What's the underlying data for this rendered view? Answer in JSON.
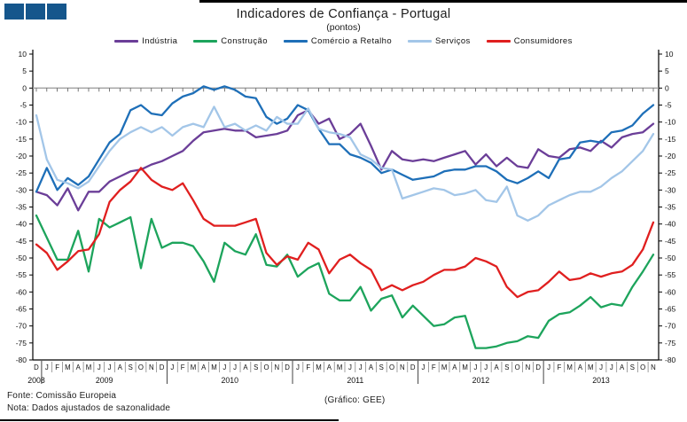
{
  "header": {
    "title": "Indicadores de Confiança - Portugal",
    "subtitle": "(pontos)"
  },
  "footer": {
    "fonte": "Fonte: Comissão Europeia",
    "nota": "Nota: Dados ajustados de sazonalidade",
    "grafico": "(Gráfico: GEE)"
  },
  "colors": {
    "logo_square": "#15568C",
    "axis": "#000000",
    "zero_line": "#a0a0a0",
    "month_tick": "#555555",
    "separator": "#777777"
  },
  "chart_data": {
    "type": "line",
    "title": "Indicadores de Confiança - Portugal",
    "subtitle": "(pontos)",
    "xlabel": "",
    "ylabel": "",
    "ylim": [
      -80,
      10
    ],
    "ytick_step": 5,
    "grid": "zero-line-only",
    "legend_position": "top",
    "x_month_labels": [
      "D",
      "J",
      "F",
      "M",
      "A",
      "M",
      "J",
      "J",
      "A",
      "S",
      "O",
      "N",
      "D",
      "J",
      "F",
      "M",
      "A",
      "M",
      "J",
      "J",
      "A",
      "S",
      "O",
      "N",
      "D",
      "J",
      "F",
      "M",
      "A",
      "M",
      "J",
      "J",
      "A",
      "S",
      "O",
      "N",
      "D",
      "J",
      "F",
      "M",
      "A",
      "M",
      "J",
      "J",
      "A",
      "S",
      "O",
      "N",
      "D",
      "J",
      "F",
      "M",
      "A",
      "M",
      "J",
      "J",
      "A",
      "S",
      "O",
      "N"
    ],
    "years": [
      {
        "label": "2008",
        "start": 0,
        "end": 0
      },
      {
        "label": "2009",
        "start": 1,
        "end": 12
      },
      {
        "label": "2010",
        "start": 13,
        "end": 24
      },
      {
        "label": "2011",
        "start": 25,
        "end": 36
      },
      {
        "label": "2012",
        "start": 37,
        "end": 48
      },
      {
        "label": "2013",
        "start": 49,
        "end": 59
      }
    ],
    "series": [
      {
        "name": "Indústria",
        "color": "#6B3E98",
        "values": [
          -30.5,
          -31.5,
          -34.5,
          -29.5,
          -36,
          -30.5,
          -30.5,
          -27.5,
          -26,
          -24.5,
          -24,
          -22.5,
          -21.5,
          -20,
          -18.5,
          -15.5,
          -13,
          -12.5,
          -12,
          -12.5,
          -12.5,
          -14.5,
          -14,
          -13.5,
          -12.5,
          -8,
          -6.5,
          -10.5,
          -9,
          -15,
          -13.5,
          -10.5,
          -17,
          -24,
          -18.5,
          -21,
          -21.5,
          -21,
          -21.5,
          -20.5,
          -19.5,
          -18.5,
          -22.5,
          -19.5,
          -23,
          -20.5,
          -23,
          -23.5,
          -18,
          -20,
          -20.5,
          -18,
          -17.5,
          -18.5,
          -15.5,
          -17.5,
          -14.5,
          -13.5,
          -13,
          -10.5
        ]
      },
      {
        "name": "Construção",
        "color": "#1DA45C",
        "values": [
          -37.5,
          -44,
          -50.5,
          -50.5,
          -42,
          -54,
          -38.5,
          -41,
          -39.5,
          -38,
          -53,
          -38.5,
          -47,
          -45.5,
          -45.5,
          -46.5,
          -51,
          -57,
          -45.5,
          -48,
          -49,
          -43,
          -52,
          -52.5,
          -49,
          -55.5,
          -53,
          -51.5,
          -60.5,
          -62.5,
          -62.5,
          -58.5,
          -65.5,
          -62,
          -61,
          -67.5,
          -64,
          -67,
          -70,
          -69.5,
          -67.5,
          -67,
          -76.5,
          -76.5,
          -76,
          -75,
          -74.5,
          -73,
          -73.5,
          -68.5,
          -66.5,
          -66,
          -64,
          -61.5,
          -64.5,
          -63.5,
          -64,
          -58.5,
          -54,
          -49
        ]
      },
      {
        "name": "Comércio a Retalho",
        "color": "#1E6FB8",
        "values": [
          -30.5,
          -23.5,
          -30,
          -26.5,
          -28.5,
          -26,
          -21,
          -16,
          -13.5,
          -6.5,
          -5,
          -7.5,
          -8,
          -4.5,
          -2.5,
          -1.5,
          0.5,
          -0.5,
          0.5,
          -0.5,
          -2.5,
          -3,
          -8.5,
          -10.5,
          -9,
          -5,
          -6.5,
          -12,
          -16.5,
          -16.5,
          -19.5,
          -20.5,
          -22,
          -25,
          -24,
          -25.5,
          -27,
          -26.5,
          -26,
          -24.5,
          -24,
          -24,
          -23,
          -23,
          -24.5,
          -27,
          -28,
          -26.5,
          -24.5,
          -26.5,
          -21,
          -20.5,
          -16,
          -15.5,
          -16,
          -13,
          -12.5,
          -11,
          -7.5,
          -5
        ]
      },
      {
        "name": "Serviços",
        "color": "#A3C6E8",
        "values": [
          -8,
          -21,
          -27,
          -28,
          -29.5,
          -27.5,
          -23,
          -18.5,
          -15,
          -13,
          -11.5,
          -13,
          -11.5,
          -14,
          -11.5,
          -10.5,
          -11.5,
          -5.5,
          -11.5,
          -10.5,
          -12.5,
          -11,
          -12.5,
          -8.5,
          -10.5,
          -10.5,
          -6,
          -12,
          -13,
          -13.5,
          -14.5,
          -19.5,
          -21,
          -23.5,
          -24,
          -32.5,
          -31.5,
          -30.5,
          -29.5,
          -30,
          -31.5,
          -31,
          -30,
          -33,
          -33.5,
          -29,
          -37.5,
          -39,
          -37.5,
          -34.5,
          -33,
          -31.5,
          -30.5,
          -30.5,
          -29,
          -26.5,
          -24.5,
          -21.5,
          -18.5,
          -13.5
        ]
      },
      {
        "name": "Consumidores",
        "color": "#E01F1F",
        "values": [
          -46,
          -48.5,
          -53.5,
          -51,
          -48,
          -47.5,
          -43,
          -33.5,
          -30,
          -27.5,
          -23.5,
          -27,
          -29,
          -30,
          -28,
          -33,
          -38.5,
          -40.5,
          -40.5,
          -40.5,
          -39.5,
          -38.5,
          -48.5,
          -52,
          -49.5,
          -50.5,
          -45.5,
          -47.5,
          -54.5,
          -50.5,
          -49,
          -51.5,
          -53.5,
          -59.5,
          -58,
          -59.5,
          -58,
          -57,
          -55,
          -53.5,
          -53.5,
          -52.5,
          -50,
          -51,
          -52.5,
          -58.5,
          -61.5,
          -60,
          -59.5,
          -57,
          -54,
          -56.5,
          -56,
          -54.5,
          -55.5,
          -54.5,
          -54,
          -52,
          -47.5,
          -39.5
        ]
      }
    ]
  }
}
